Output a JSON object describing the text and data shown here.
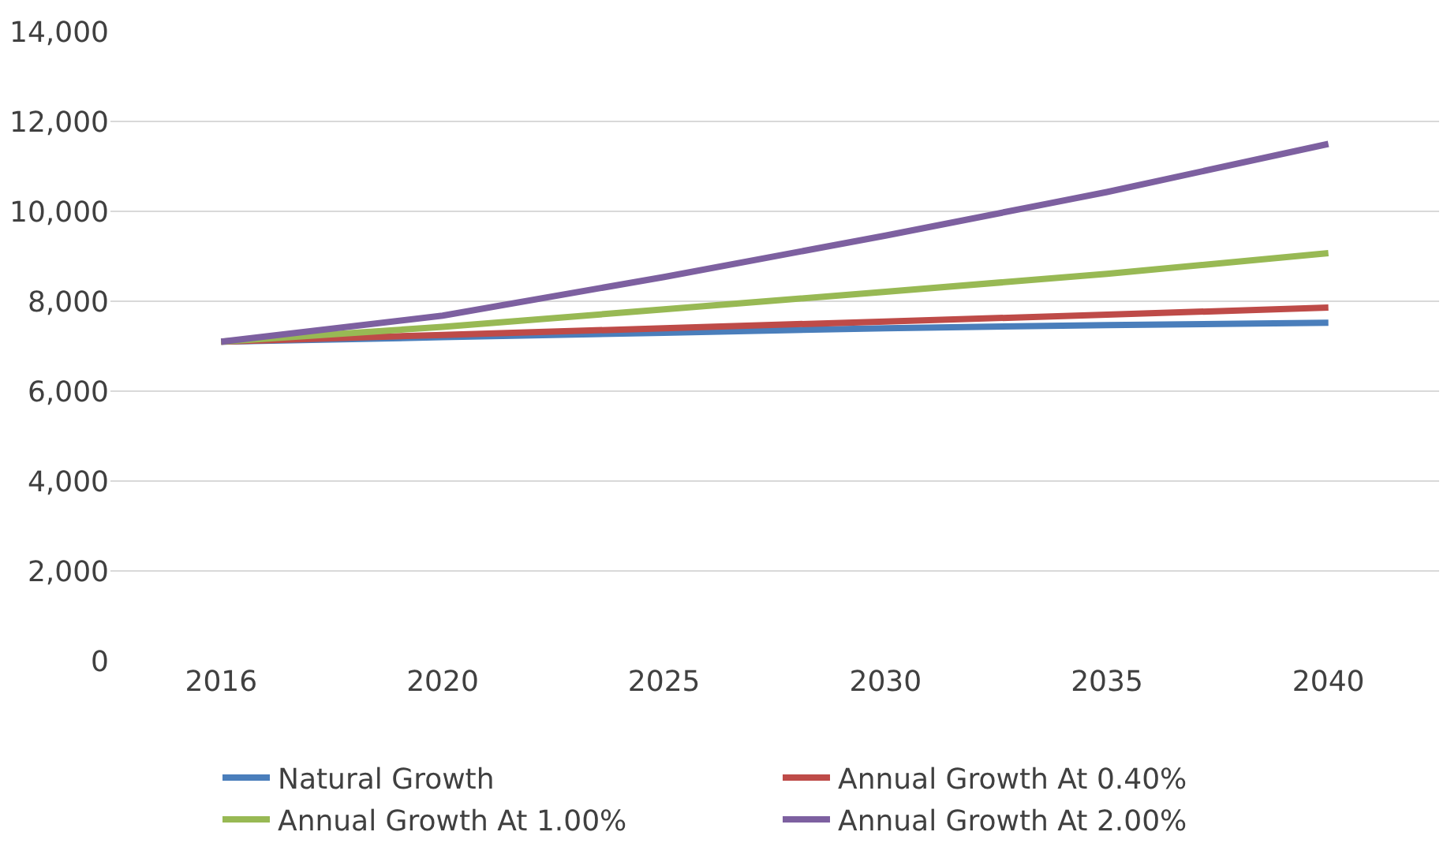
{
  "chart_data": {
    "type": "line",
    "categories": [
      "2016",
      "2020",
      "2025",
      "2030",
      "2035",
      "2040"
    ],
    "series": [
      {
        "name": "Natural Growth",
        "color": "#4a7ebb",
        "values": [
          7100,
          7200,
          7300,
          7400,
          7470,
          7520
        ]
      },
      {
        "name": "Annual Growth At 0.40%",
        "color": "#be4b48",
        "values": [
          7100,
          7250,
          7400,
          7550,
          7700,
          7860
        ]
      },
      {
        "name": "Annual Growth At 1.00%",
        "color": "#98b954",
        "values": [
          7100,
          7430,
          7820,
          8210,
          8610,
          9070
        ]
      },
      {
        "name": "Annual Growth At 2.00%",
        "color": "#7d60a0",
        "values": [
          7100,
          7680,
          8540,
          9460,
          10430,
          11500
        ]
      }
    ],
    "ylim": [
      0,
      14000
    ],
    "yticks": [
      {
        "value": 0,
        "label": "0"
      },
      {
        "value": 2000,
        "label": "2,000"
      },
      {
        "value": 4000,
        "label": "4,000"
      },
      {
        "value": 6000,
        "label": "6,000"
      },
      {
        "value": 8000,
        "label": "8,000"
      },
      {
        "value": 10000,
        "label": "10,000"
      },
      {
        "value": 12000,
        "label": "12,000"
      },
      {
        "value": 14000,
        "label": "14,000"
      }
    ],
    "grid": "y",
    "legend": "bottom",
    "marker": "none",
    "line_style": "solid"
  }
}
